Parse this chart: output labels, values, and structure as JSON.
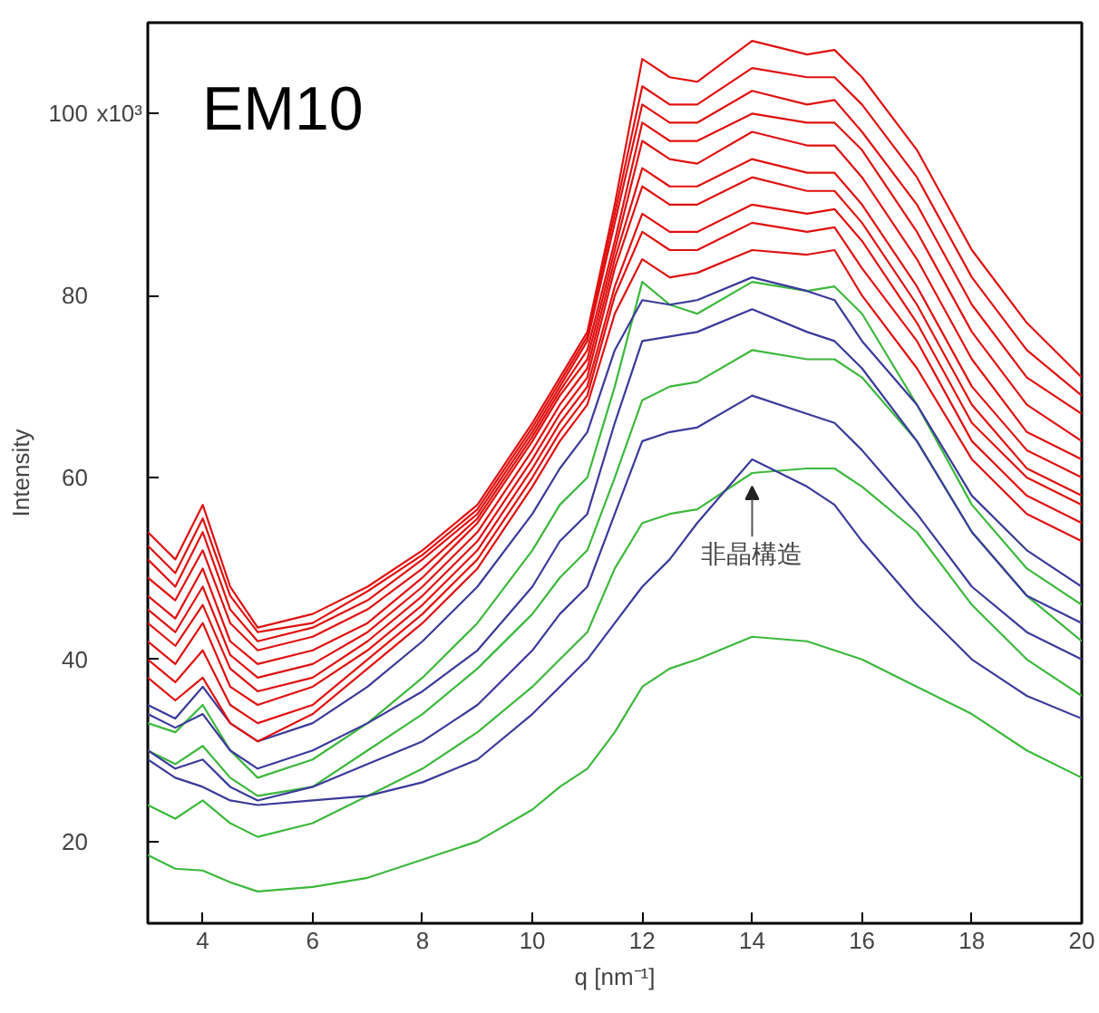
{
  "chart_data": {
    "type": "line",
    "title": "EM10",
    "xlabel": "q [nm⁻¹]",
    "ylabel": "Intensity",
    "annotations": [
      "x10³",
      {
        "text": "非晶構造",
        "x": 14,
        "y": 60.5
      }
    ],
    "xlim": [
      3,
      20
    ],
    "xticks": [
      4,
      6,
      8,
      10,
      12,
      14,
      16,
      18,
      20
    ],
    "ylim": [
      11,
      110
    ],
    "yticks": [
      20,
      40,
      60,
      80,
      100
    ],
    "grid": false,
    "marker": "none",
    "line_style": "solid",
    "x": [
      3,
      3.5,
      4,
      4.5,
      5,
      6,
      7,
      8,
      9,
      10,
      10.5,
      11,
      11.5,
      12,
      12.5,
      13,
      14,
      15,
      15.5,
      16,
      17,
      18,
      19,
      20
    ],
    "series": [
      {
        "color": "#3cb83c",
        "values": [
          18.5,
          17,
          16.8,
          15.5,
          14.5,
          15,
          16,
          18,
          20,
          23.5,
          26,
          28,
          32,
          37,
          39,
          40,
          42.5,
          42,
          41,
          40,
          37,
          34,
          30,
          27
        ]
      },
      {
        "color": "#3cb83c",
        "values": [
          24,
          22.5,
          24.5,
          22,
          20.5,
          22,
          25,
          28,
          32,
          37,
          40,
          43,
          50,
          55,
          56,
          56.5,
          60.5,
          61,
          61,
          59,
          54,
          46,
          40,
          36
        ]
      },
      {
        "color": "#3cb83c",
        "values": [
          30,
          28.5,
          30.5,
          27,
          25,
          26,
          30,
          34,
          39,
          45,
          49,
          52,
          60,
          68.5,
          70,
          70.5,
          74,
          73,
          73,
          71,
          64,
          54,
          47,
          42
        ]
      },
      {
        "color": "#3cb83c",
        "values": [
          33,
          32,
          35,
          30,
          27,
          29,
          33,
          38,
          44,
          52,
          57,
          60,
          70,
          81.5,
          79,
          78,
          81.5,
          80.5,
          81,
          78,
          68,
          57,
          50,
          46
        ]
      },
      {
        "color": "#3a3a9a",
        "values": [
          29,
          27,
          26,
          24.5,
          24,
          24.5,
          25,
          26.5,
          29,
          34,
          37,
          40,
          44,
          48,
          51,
          55,
          62,
          59,
          57,
          53,
          46,
          40,
          36,
          33.5
        ]
      },
      {
        "color": "#3a3a9a",
        "values": [
          30,
          28,
          29,
          26,
          24.5,
          26,
          28.5,
          31,
          35,
          41,
          45,
          48,
          56,
          64,
          65,
          65.5,
          69,
          67,
          66,
          63,
          56,
          48,
          43,
          40
        ]
      },
      {
        "color": "#3a3a9a",
        "values": [
          34,
          32.5,
          34,
          30,
          28,
          30,
          33,
          36.5,
          41,
          48,
          53,
          56,
          66,
          75,
          75.5,
          76,
          78.5,
          76,
          75,
          72,
          64,
          54,
          47,
          44
        ]
      },
      {
        "color": "#3a3a9a",
        "values": [
          35,
          33.5,
          37,
          33,
          31,
          33,
          37,
          42,
          48,
          56,
          61,
          65,
          74,
          79.5,
          79,
          79.5,
          82,
          80.5,
          79.5,
          75,
          68,
          58,
          52,
          48
        ]
      },
      {
        "color": "#e01010",
        "values": [
          38,
          35.5,
          38,
          33,
          31,
          34,
          39,
          44,
          50,
          59,
          64,
          68,
          78,
          84,
          82,
          82.5,
          85,
          84.5,
          85,
          80,
          72,
          62,
          56,
          53
        ]
      },
      {
        "color": "#e01010",
        "values": [
          40,
          37.5,
          41,
          35,
          33,
          35,
          40,
          45,
          51,
          60,
          65,
          69,
          80,
          87,
          85,
          85,
          88,
          87,
          87.5,
          83,
          75,
          64,
          58,
          55
        ]
      },
      {
        "color": "#e01010",
        "values": [
          42,
          39.5,
          44,
          37,
          35,
          37,
          41,
          46,
          52,
          61,
          66,
          70,
          81,
          89,
          87,
          87,
          90,
          89,
          89.5,
          86,
          77,
          66,
          60,
          57
        ]
      },
      {
        "color": "#e01010",
        "values": [
          44,
          41.5,
          46,
          39,
          36.5,
          38,
          42,
          47,
          53,
          62,
          67,
          71,
          83,
          92,
          90,
          90,
          93,
          91.5,
          91.5,
          88,
          79,
          68,
          61,
          58
        ]
      },
      {
        "color": "#e01010",
        "values": [
          45.5,
          43,
          48,
          40.5,
          38,
          39.5,
          43,
          48,
          54,
          63,
          68,
          72,
          84,
          94,
          92,
          92,
          95,
          93.5,
          93.5,
          90,
          81,
          70,
          63,
          60
        ]
      },
      {
        "color": "#e01010",
        "values": [
          47,
          44.5,
          50,
          42,
          39.5,
          41,
          44,
          49,
          55,
          64,
          69,
          73,
          85,
          97,
          95,
          94.5,
          98,
          96.5,
          96.5,
          93,
          84,
          73,
          65,
          62
        ]
      },
      {
        "color": "#e01010",
        "values": [
          49,
          46.5,
          52,
          44,
          41,
          42.5,
          45.5,
          50,
          55.5,
          64.5,
          69.5,
          74,
          86,
          99,
          97,
          97,
          100,
          99,
          99,
          96,
          87,
          76,
          68,
          64
        ]
      },
      {
        "color": "#e01010",
        "values": [
          51,
          48,
          54,
          45.5,
          42,
          43.5,
          46.5,
          51,
          56,
          65,
          70,
          75,
          88,
          101,
          99,
          99,
          102.5,
          101,
          101.5,
          98,
          90,
          79,
          71,
          67
        ]
      },
      {
        "color": "#e01010",
        "values": [
          52.5,
          49.5,
          55.5,
          47,
          43,
          44,
          47.5,
          51.5,
          56.5,
          65.5,
          70.5,
          75.5,
          89,
          103,
          101,
          101,
          105,
          104,
          104,
          101,
          93,
          82,
          74,
          69
        ]
      },
      {
        "color": "#e01010",
        "values": [
          54,
          51,
          57,
          48,
          43.5,
          45,
          48,
          52,
          57,
          66,
          71,
          76,
          90,
          106,
          104,
          103.5,
          108,
          106.5,
          107,
          104,
          96,
          85,
          77,
          71
        ]
      }
    ]
  }
}
